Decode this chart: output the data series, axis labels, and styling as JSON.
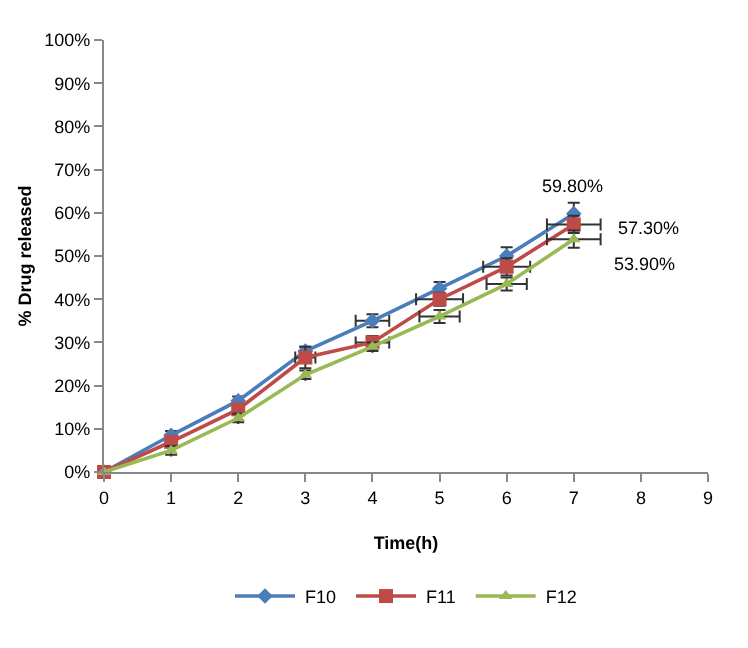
{
  "chart_data": {
    "type": "line",
    "xlabel": "Time(h)",
    "ylabel": "% Drug released",
    "x": [
      0,
      1,
      2,
      3,
      4,
      5,
      6,
      7
    ],
    "series": [
      {
        "name": "F10",
        "color": "#4a7ebb",
        "marker": "diamond",
        "values": [
          0,
          8.5,
          16.5,
          28,
          35,
          42.5,
          50,
          59.8
        ],
        "errors": [
          null,
          1,
          1,
          1,
          1.5,
          1.5,
          2,
          2.5
        ],
        "xerrors": [
          null,
          null,
          null,
          null,
          0.25,
          null,
          null,
          null
        ]
      },
      {
        "name": "F11",
        "color": "#be4b48",
        "marker": "square",
        "values": [
          0,
          7,
          14.5,
          26.5,
          30,
          40,
          47.5,
          57.3
        ],
        "errors": [
          null,
          1,
          1,
          2.5,
          1.5,
          1.5,
          2,
          2
        ],
        "xerrors": [
          null,
          null,
          null,
          0.15,
          0.25,
          0.35,
          0.35,
          0.4
        ]
      },
      {
        "name": "F12",
        "color": "#98b954",
        "marker": "triangle",
        "values": [
          0,
          5,
          12.5,
          22.5,
          29,
          36,
          43.5,
          53.9
        ],
        "errors": [
          null,
          1,
          1,
          1,
          1,
          1.5,
          1.5,
          2
        ],
        "xerrors": [
          null,
          null,
          null,
          null,
          null,
          0.3,
          0.3,
          0.4
        ]
      }
    ],
    "xlim": [
      0,
      9
    ],
    "xticks": [
      0,
      1,
      2,
      3,
      4,
      5,
      6,
      7,
      8,
      9
    ],
    "ylim": [
      0,
      100
    ],
    "yticks": [
      {
        "value": 0,
        "label": "0%"
      },
      {
        "value": 10,
        "label": "10%"
      },
      {
        "value": 20,
        "label": "20%"
      },
      {
        "value": 30,
        "label": "30%"
      },
      {
        "value": 40,
        "label": "40%"
      },
      {
        "value": 50,
        "label": "50%"
      },
      {
        "value": 60,
        "label": "60%"
      },
      {
        "value": 70,
        "label": "70%"
      },
      {
        "value": 80,
        "label": "80%"
      },
      {
        "value": 90,
        "label": "90%"
      },
      {
        "value": 100,
        "label": "100%"
      }
    ],
    "annotations": [
      "59.80%",
      "57.30%",
      "53.90%"
    ],
    "grid": false,
    "legend": "bottom",
    "line_style": "solid"
  }
}
